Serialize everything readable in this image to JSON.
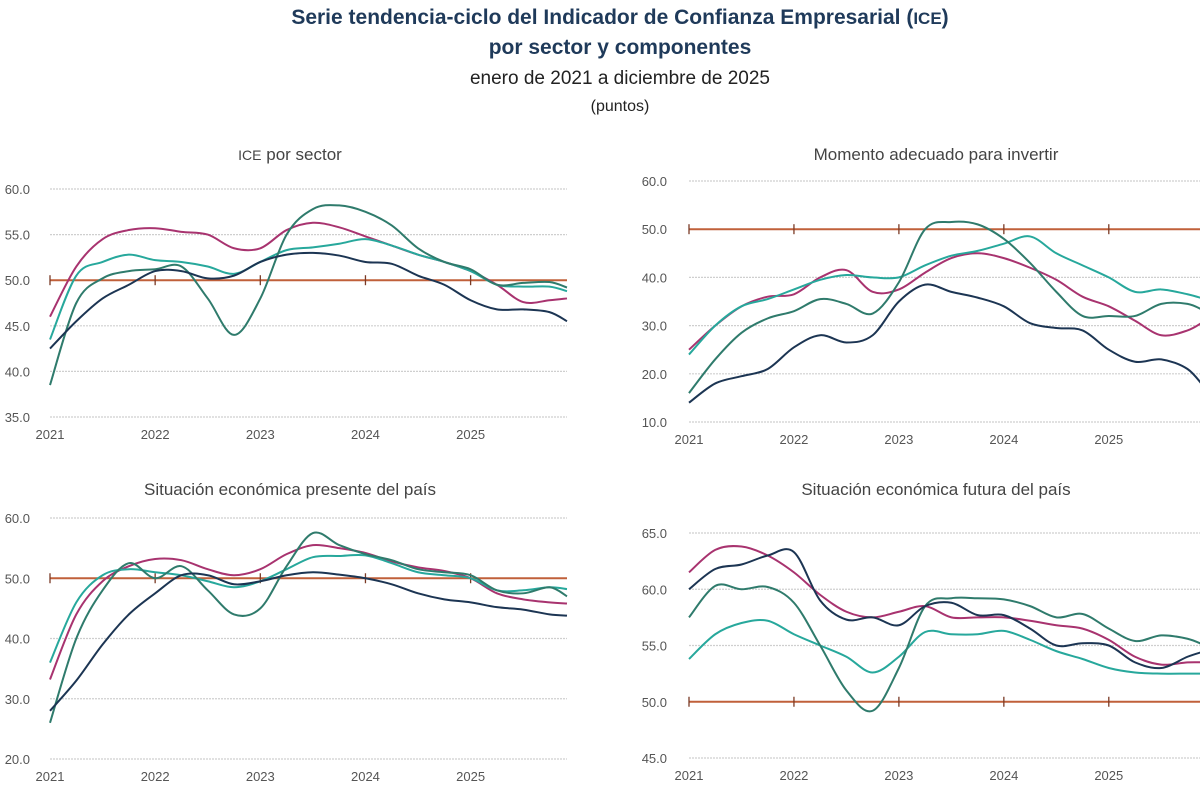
{
  "header": {
    "title_line1_a": "Serie tendencia-ciclo del Indicador de Confianza Empresarial (",
    "title_line1_b": "ICE",
    "title_line1_c": ")",
    "title_line2": "por sector y componentes",
    "subtitle": "enero de 2021 a diciembre de 2025",
    "units": "(puntos)"
  },
  "colors": {
    "magenta": "#a8336f",
    "light_teal": "#27a89c",
    "dark_green": "#2f7b6c",
    "navy": "#1c3553",
    "reference_line": "#c0603a",
    "grid": "#cfcfcf"
  },
  "chart_data": [
    {
      "type": "line",
      "title_prefix": "ICE",
      "title": " por sector",
      "ylim": [
        35,
        60
      ],
      "yticks": [
        "35.0",
        "40.0",
        "45.0",
        "50.0",
        "55.0",
        "60.0"
      ],
      "xticks": [
        "2021",
        "2022",
        "2023",
        "2024",
        "2025"
      ],
      "reference_line": 50,
      "grid": true,
      "x": [
        "2021-01",
        "2021-04",
        "2021-07",
        "2021-10",
        "2022-01",
        "2022-04",
        "2022-07",
        "2022-10",
        "2023-01",
        "2023-04",
        "2023-07",
        "2023-10",
        "2024-01",
        "2024-04",
        "2024-07",
        "2024-10",
        "2025-01",
        "2025-04",
        "2025-07",
        "2025-10",
        "2025-12"
      ],
      "series": [
        {
          "color": "magenta",
          "values": [
            46,
            51.5,
            54.5,
            55.5,
            55.7,
            55.3,
            55,
            53.5,
            53.5,
            55.5,
            56.3,
            55.8,
            54.8,
            53.8,
            52.8,
            52,
            51,
            49.5,
            47.6,
            47.8,
            48
          ]
        },
        {
          "color": "light_teal",
          "values": [
            43.5,
            50.5,
            52,
            52.8,
            52.2,
            52,
            51.5,
            50.7,
            52,
            53.3,
            53.6,
            54,
            54.5,
            53.8,
            52.8,
            52,
            51,
            49.5,
            49.3,
            49.3,
            48.8
          ]
        },
        {
          "color": "dark_green",
          "values": [
            38.5,
            47.5,
            50.2,
            51,
            51.2,
            51.5,
            48,
            44,
            48,
            55,
            57.8,
            58.2,
            57.5,
            56,
            53.5,
            52,
            51.2,
            49.5,
            49.7,
            49.8,
            49.2
          ]
        },
        {
          "color": "navy",
          "values": [
            42.5,
            45.5,
            48,
            49.5,
            51,
            51,
            50.2,
            50.5,
            52,
            52.8,
            53,
            52.7,
            52,
            51.8,
            50.5,
            49.5,
            47.8,
            46.8,
            46.8,
            46.5,
            45.5
          ]
        }
      ]
    },
    {
      "type": "line",
      "title": "Momento adecuado para invertir",
      "ylim": [
        10,
        60
      ],
      "yticks": [
        "10.0",
        "20.0",
        "30.0",
        "40.0",
        "50.0",
        "60.0"
      ],
      "xticks": [
        "2021",
        "2022",
        "2023",
        "2024",
        "2025"
      ],
      "reference_line": 50,
      "grid": true,
      "x": [
        "2021-01",
        "2021-04",
        "2021-07",
        "2021-10",
        "2022-01",
        "2022-04",
        "2022-07",
        "2022-10",
        "2023-01",
        "2023-04",
        "2023-07",
        "2023-10",
        "2024-01",
        "2024-04",
        "2024-07",
        "2024-10",
        "2025-01",
        "2025-04",
        "2025-07",
        "2025-10",
        "2025-12"
      ],
      "series": [
        {
          "color": "magenta",
          "values": [
            25,
            30,
            34,
            36,
            36.5,
            40,
            41.5,
            37,
            37.5,
            41,
            44,
            45,
            44,
            42,
            39.5,
            36,
            34,
            31,
            28,
            29,
            31
          ]
        },
        {
          "color": "light_teal",
          "values": [
            24,
            30,
            34,
            35.5,
            37.5,
            39.5,
            40.5,
            40,
            40,
            42.5,
            44.5,
            45.5,
            47,
            48.5,
            45,
            42.5,
            40,
            37,
            37.5,
            36.5,
            35.5
          ]
        },
        {
          "color": "dark_green",
          "values": [
            16,
            23,
            28.5,
            31.5,
            33,
            35.5,
            34.5,
            32.5,
            39,
            50,
            51.5,
            51,
            48,
            43,
            37,
            32,
            32,
            32,
            34.5,
            34.5,
            33
          ]
        },
        {
          "color": "navy",
          "values": [
            14,
            18,
            19.5,
            21,
            25.5,
            28,
            26.5,
            28,
            35,
            38.5,
            37,
            35.8,
            34,
            30.5,
            29.5,
            29,
            25,
            22.5,
            23,
            21,
            17
          ]
        }
      ]
    },
    {
      "type": "line",
      "title": "Situación económica presente del país",
      "ylim": [
        20,
        60
      ],
      "yticks": [
        "20.0",
        "30.0",
        "40.0",
        "50.0",
        "60.0"
      ],
      "xticks": [
        "2021",
        "2022",
        "2023",
        "2024",
        "2025"
      ],
      "reference_line": 50,
      "grid": true,
      "x": [
        "2021-01",
        "2021-04",
        "2021-07",
        "2021-10",
        "2022-01",
        "2022-04",
        "2022-07",
        "2022-10",
        "2023-01",
        "2023-04",
        "2023-07",
        "2023-10",
        "2024-01",
        "2024-04",
        "2024-07",
        "2024-10",
        "2025-01",
        "2025-04",
        "2025-07",
        "2025-10",
        "2025-12"
      ],
      "series": [
        {
          "color": "magenta",
          "values": [
            33.2,
            44,
            49.5,
            52,
            53.2,
            53,
            51.5,
            50.5,
            51.5,
            54,
            55.5,
            55,
            54.2,
            52.8,
            51.8,
            51.2,
            50,
            47.5,
            46.5,
            46,
            45.8
          ]
        },
        {
          "color": "light_teal",
          "values": [
            36,
            46,
            50.5,
            51.5,
            51,
            50.5,
            49.5,
            48.5,
            49.5,
            51.5,
            53.5,
            53.7,
            53.8,
            52.5,
            51,
            50.5,
            50,
            48,
            48,
            48.5,
            48.2
          ]
        },
        {
          "color": "dark_green",
          "values": [
            26,
            40,
            48,
            52.5,
            50,
            52,
            48,
            44,
            45,
            52,
            57.5,
            55.5,
            54,
            53,
            51.5,
            51,
            50.5,
            48,
            47.5,
            48.5,
            47
          ]
        },
        {
          "color": "navy",
          "values": [
            28,
            33,
            39,
            44,
            47.5,
            50.5,
            50.5,
            49,
            49.5,
            50.5,
            51,
            50.6,
            50,
            49,
            47.5,
            46.5,
            46,
            45.2,
            44.8,
            44,
            43.8
          ]
        }
      ]
    },
    {
      "type": "line",
      "title": "Situación económica futura del país",
      "ylim": [
        45,
        65
      ],
      "yticks": [
        "45.0",
        "50.0",
        "55.0",
        "60.0",
        "65.0"
      ],
      "xticks": [
        "2021",
        "2022",
        "2023",
        "2024",
        "2025"
      ],
      "reference_line": 50,
      "grid": true,
      "x": [
        "2021-01",
        "2021-04",
        "2021-07",
        "2021-10",
        "2022-01",
        "2022-04",
        "2022-07",
        "2022-10",
        "2023-01",
        "2023-04",
        "2023-07",
        "2023-10",
        "2024-01",
        "2024-04",
        "2024-07",
        "2024-10",
        "2025-01",
        "2025-04",
        "2025-07",
        "2025-10",
        "2025-12"
      ],
      "series": [
        {
          "color": "magenta",
          "values": [
            61.5,
            63.5,
            63.8,
            63,
            61.5,
            59.5,
            58,
            57.5,
            58,
            58.5,
            57.5,
            57.5,
            57.5,
            57.2,
            56.8,
            56.5,
            55.5,
            54,
            53.3,
            53.5,
            53.5
          ]
        },
        {
          "color": "light_teal",
          "values": [
            53.8,
            56,
            57,
            57.2,
            56,
            55,
            54,
            52.6,
            54,
            56.2,
            56,
            56,
            56.3,
            55.5,
            54.5,
            53.8,
            53,
            52.6,
            52.5,
            52.5,
            52.5
          ]
        },
        {
          "color": "dark_green",
          "values": [
            57.5,
            60.3,
            60,
            60.2,
            58.8,
            55,
            51,
            49.2,
            53,
            58.5,
            59.2,
            59.2,
            59.1,
            58.5,
            57.5,
            57.8,
            56.5,
            55.4,
            55.9,
            55.6,
            55
          ]
        },
        {
          "color": "navy",
          "values": [
            60,
            61.8,
            62.2,
            63,
            63.3,
            59,
            57.3,
            57.5,
            56.8,
            58.5,
            58.8,
            57.7,
            57.7,
            56.5,
            55,
            55.2,
            55,
            53.5,
            53,
            54,
            54.5
          ]
        }
      ]
    }
  ]
}
